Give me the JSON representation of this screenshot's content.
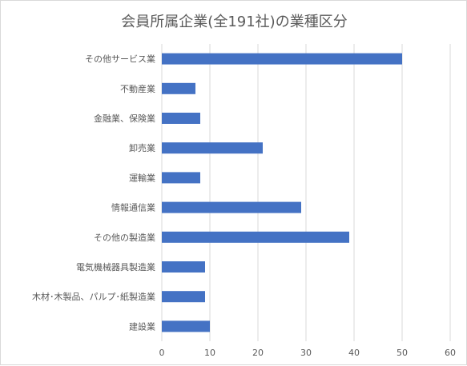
{
  "chart_data": {
    "type": "bar",
    "orientation": "horizontal",
    "title": "会員所属企業(全191社)の業種区分",
    "categories": [
      "その他サービス業",
      "不動産業",
      "金融業、保険業",
      "卸売業",
      "運輸業",
      "情報通信業",
      "その他の製造業",
      "電気機械器具製造業",
      "木材･木製品、パルプ･紙製造業",
      "建設業"
    ],
    "values": [
      50,
      7,
      8,
      21,
      8,
      29,
      39,
      9,
      9,
      10
    ],
    "xlim": [
      0,
      60
    ],
    "xticks": [
      "0",
      "10",
      "20",
      "30",
      "40",
      "50",
      "60"
    ],
    "grid": true,
    "bar_color": "#4472c4",
    "grid_color": "#d9d9d9"
  }
}
